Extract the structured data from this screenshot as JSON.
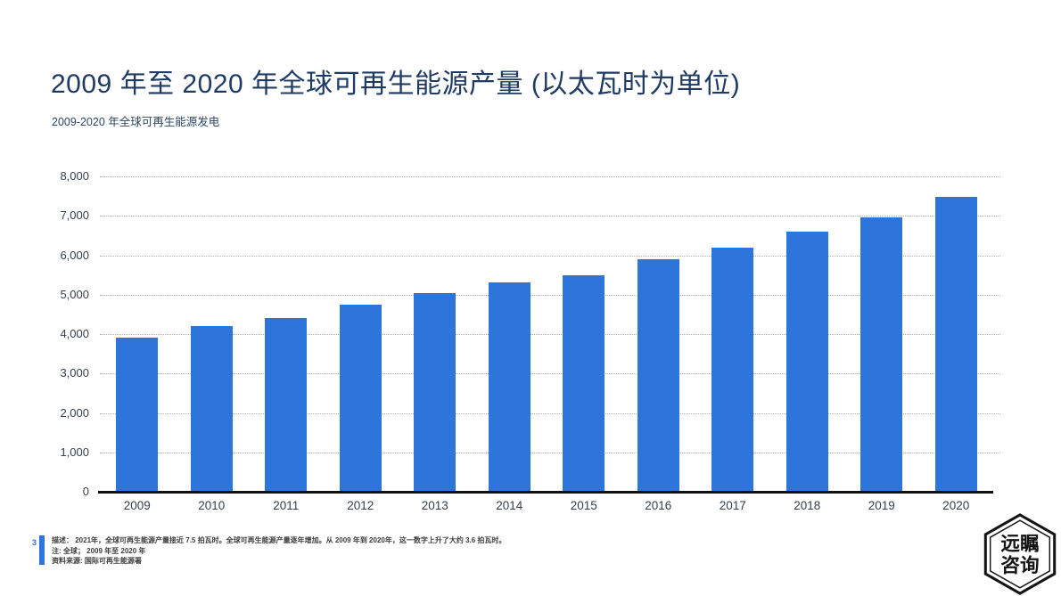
{
  "page": {
    "number": "3"
  },
  "header": {
    "title": "2009 年至 2020 年全球可再生能源产量 (以太瓦时为单位)",
    "subtitle": "2009-2020 年全球可再生能源发电"
  },
  "chart_data": {
    "type": "bar",
    "title": "2009 年至 2020 年全球可再生能源产量 (以太瓦时为单位)",
    "subtitle": "2009-2020 年全球可再生能源发电",
    "categories": [
      "2009",
      "2010",
      "2011",
      "2012",
      "2013",
      "2014",
      "2015",
      "2016",
      "2017",
      "2018",
      "2019",
      "2020"
    ],
    "values": [
      3900,
      4200,
      4400,
      4750,
      5050,
      5300,
      5500,
      5900,
      6200,
      6600,
      6950,
      7470
    ],
    "xlabel": "",
    "ylabel": "",
    "ylim": [
      0,
      8000
    ],
    "ytick_step": 1000,
    "grid": "horizontal-dotted",
    "legend": "none",
    "bar_color": "#2d75db"
  },
  "footnotes": {
    "line1": "描述： 2021年，全球可再生能源产量接近 7.5 拍瓦时。全球可再生能源产量逐年增加。从 2009 年到 2020年，这一数字上升了大约 3.6 拍瓦时。",
    "line2": "注: 全球； 2009 年至 2020 年",
    "line3": "资料来源: 国际可再生能源署"
  },
  "logo": {
    "line1": "远瞩",
    "line2": "咨询"
  },
  "colors": {
    "bar": "#2d75db",
    "title_text": "#1f3b64",
    "axis_text": "#333f50",
    "accent": "#2d75db"
  }
}
